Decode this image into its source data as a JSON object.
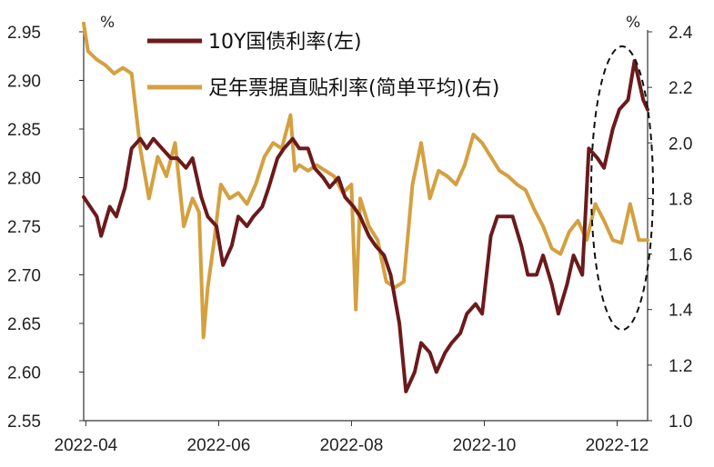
{
  "chart_data": {
    "type": "line",
    "legend_position": "top",
    "x_ticks": [
      "2022-04",
      "2022-06",
      "2022-08",
      "2022-10",
      "2022-12"
    ],
    "y_left": {
      "unit": "%",
      "range": [
        2.55,
        2.95
      ],
      "ticks": [
        "2.55",
        "2.60",
        "2.65",
        "2.70",
        "2.75",
        "2.80",
        "2.85",
        "2.90",
        "2.95"
      ]
    },
    "y_right": {
      "unit": "%",
      "range": [
        1.0,
        2.4
      ],
      "ticks": [
        "1.0",
        "1.2",
        "1.4",
        "1.6",
        "1.8",
        "2.0",
        "2.2",
        "2.4"
      ]
    },
    "series": [
      {
        "name": "10Y国债利率(左)",
        "axis": "left",
        "color": "#6b1a1c",
        "x": [
          "2022-03-31",
          "2022-04-06",
          "2022-04-08",
          "2022-04-12",
          "2022-04-15",
          "2022-04-19",
          "2022-04-22",
          "2022-04-26",
          "2022-04-29",
          "2022-05-02",
          "2022-05-06",
          "2022-05-10",
          "2022-05-13",
          "2022-05-17",
          "2022-05-20",
          "2022-05-24",
          "2022-05-27",
          "2022-05-31",
          "2022-06-03",
          "2022-06-07",
          "2022-06-10",
          "2022-06-14",
          "2022-06-17",
          "2022-06-21",
          "2022-06-24",
          "2022-06-28",
          "2022-07-01",
          "2022-07-05",
          "2022-07-08",
          "2022-07-12",
          "2022-07-15",
          "2022-07-19",
          "2022-07-22",
          "2022-07-26",
          "2022-07-29",
          "2022-08-02",
          "2022-08-05",
          "2022-08-09",
          "2022-08-12",
          "2022-08-16",
          "2022-08-19",
          "2022-08-23",
          "2022-08-26",
          "2022-08-30",
          "2022-09-02",
          "2022-09-06",
          "2022-09-09",
          "2022-09-13",
          "2022-09-16",
          "2022-09-20",
          "2022-09-23",
          "2022-09-27",
          "2022-09-30",
          "2022-10-04",
          "2022-10-07",
          "2022-10-11",
          "2022-10-14",
          "2022-10-18",
          "2022-10-21",
          "2022-10-25",
          "2022-10-28",
          "2022-11-01",
          "2022-11-04",
          "2022-11-08",
          "2022-11-11",
          "2022-11-15",
          "2022-11-18",
          "2022-11-22",
          "2022-11-25",
          "2022-11-29",
          "2022-12-02",
          "2022-12-06",
          "2022-12-09",
          "2022-12-13",
          "2022-12-15"
        ],
        "y": [
          2.78,
          2.76,
          2.74,
          2.77,
          2.76,
          2.79,
          2.83,
          2.84,
          2.83,
          2.84,
          2.83,
          2.82,
          2.82,
          2.81,
          2.82,
          2.78,
          2.76,
          2.75,
          2.71,
          2.73,
          2.76,
          2.75,
          2.76,
          2.77,
          2.79,
          2.82,
          2.83,
          2.84,
          2.83,
          2.83,
          2.81,
          2.8,
          2.79,
          2.8,
          2.78,
          2.77,
          2.76,
          2.74,
          2.73,
          2.72,
          2.7,
          2.65,
          2.58,
          2.6,
          2.63,
          2.62,
          2.6,
          2.62,
          2.63,
          2.64,
          2.66,
          2.67,
          2.66,
          2.74,
          2.76,
          2.76,
          2.76,
          2.73,
          2.7,
          2.7,
          2.72,
          2.69,
          2.66,
          2.69,
          2.72,
          2.7,
          2.83,
          2.82,
          2.81,
          2.85,
          2.87,
          2.88,
          2.92,
          2.88,
          2.87
        ]
      },
      {
        "name": "足年票据直贴利率(简单平均)(右)",
        "axis": "right",
        "color": "#d4a040",
        "x": [
          "2022-03-31",
          "2022-04-02",
          "2022-04-06",
          "2022-04-10",
          "2022-04-14",
          "2022-04-18",
          "2022-04-22",
          "2022-04-26",
          "2022-04-30",
          "2022-05-04",
          "2022-05-08",
          "2022-05-12",
          "2022-05-16",
          "2022-05-20",
          "2022-05-23",
          "2022-05-25",
          "2022-05-27",
          "2022-05-30",
          "2022-06-02",
          "2022-06-06",
          "2022-06-10",
          "2022-06-14",
          "2022-06-18",
          "2022-06-22",
          "2022-06-26",
          "2022-06-30",
          "2022-07-04",
          "2022-07-06",
          "2022-07-08",
          "2022-07-12",
          "2022-07-16",
          "2022-07-20",
          "2022-07-24",
          "2022-07-28",
          "2022-08-01",
          "2022-08-03",
          "2022-08-05",
          "2022-08-09",
          "2022-08-13",
          "2022-08-17",
          "2022-08-21",
          "2022-08-25",
          "2022-08-29",
          "2022-09-02",
          "2022-09-06",
          "2022-09-10",
          "2022-09-14",
          "2022-09-18",
          "2022-09-22",
          "2022-09-26",
          "2022-09-30",
          "2022-10-04",
          "2022-10-08",
          "2022-10-12",
          "2022-10-16",
          "2022-10-20",
          "2022-10-24",
          "2022-10-28",
          "2022-11-01",
          "2022-11-05",
          "2022-11-09",
          "2022-11-13",
          "2022-11-17",
          "2022-11-21",
          "2022-11-25",
          "2022-11-29",
          "2022-12-03",
          "2022-12-07",
          "2022-12-11",
          "2022-12-15"
        ],
        "y": [
          2.43,
          2.33,
          2.3,
          2.28,
          2.25,
          2.27,
          2.25,
          1.98,
          1.8,
          1.95,
          1.88,
          2.0,
          1.7,
          1.8,
          1.75,
          1.3,
          1.48,
          1.65,
          1.85,
          1.8,
          1.82,
          1.78,
          1.85,
          1.95,
          2.0,
          1.98,
          2.1,
          1.9,
          1.92,
          1.9,
          1.92,
          1.9,
          1.88,
          1.82,
          1.85,
          1.4,
          1.8,
          1.7,
          1.65,
          1.5,
          1.48,
          1.5,
          1.85,
          2.0,
          1.8,
          1.9,
          1.88,
          1.85,
          1.92,
          2.03,
          2.0,
          1.95,
          1.9,
          1.88,
          1.85,
          1.83,
          1.76,
          1.7,
          1.62,
          1.6,
          1.68,
          1.72,
          1.65,
          1.78,
          1.72,
          1.65,
          1.64,
          1.78,
          1.65,
          1.65
        ]
      }
    ]
  }
}
